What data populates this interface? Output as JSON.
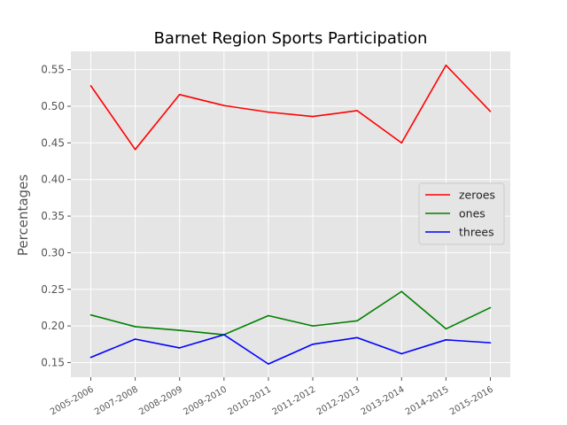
{
  "chart_data": {
    "type": "line",
    "title": "Barnet Region Sports Participation",
    "xlabel": "",
    "ylabel": "Percentages",
    "categories": [
      "2005-2006",
      "2007-2008",
      "2008-2009",
      "2009-2010",
      "2010-2011",
      "2011-2012",
      "2012-2013",
      "2013-2014",
      "2014-2015",
      "2015-2016"
    ],
    "ylim": [
      0.13,
      0.575
    ],
    "yticks": [
      "0.15",
      "0.20",
      "0.25",
      "0.30",
      "0.35",
      "0.40",
      "0.45",
      "0.50",
      "0.55"
    ],
    "grid": true,
    "legend_position": "right",
    "series": [
      {
        "name": "zeroes",
        "color": "#ff0000",
        "values": [
          0.528,
          0.441,
          0.516,
          0.501,
          0.492,
          0.486,
          0.494,
          0.45,
          0.556,
          0.493
        ]
      },
      {
        "name": "ones",
        "color": "#008000",
        "values": [
          0.215,
          0.199,
          0.194,
          0.188,
          0.214,
          0.2,
          0.207,
          0.247,
          0.196,
          0.225
        ]
      },
      {
        "name": "threes",
        "color": "#0000ff",
        "values": [
          0.157,
          0.182,
          0.17,
          0.188,
          0.148,
          0.175,
          0.184,
          0.162,
          0.181,
          0.177
        ]
      }
    ]
  }
}
